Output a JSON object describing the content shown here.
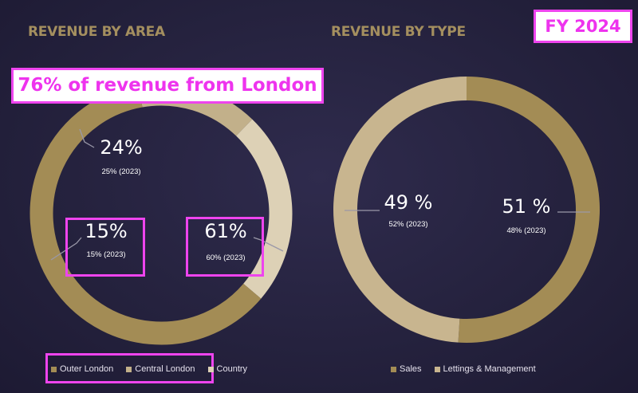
{
  "badge": "FY 2024",
  "headline": "76% of revenue from London",
  "chart_data": [
    {
      "type": "pie",
      "title": "REVENUE BY AREA",
      "categories": [
        "Central London",
        "Country",
        "Outer London"
      ],
      "values": [
        15,
        24,
        61
      ],
      "labels": [
        "15%",
        "24%",
        "61%"
      ],
      "sublabels": [
        "15% (2023)",
        "25% (2023)",
        "60% (2023)"
      ],
      "colors": [
        "#c2b08a",
        "#ddd1b6",
        "#a38c55"
      ],
      "legend": [
        {
          "name": "Outer London",
          "color": "#a38c55"
        },
        {
          "name": "Central London",
          "color": "#c2b08a"
        },
        {
          "name": "Country",
          "color": "#ddd1b6"
        }
      ],
      "legend_position": "bottom"
    },
    {
      "type": "pie",
      "title": "REVENUE BY TYPE",
      "categories": [
        "Sales",
        "Lettings & Management"
      ],
      "values": [
        51,
        49
      ],
      "labels": [
        "51 %",
        "49 %"
      ],
      "sublabels": [
        "48% (2023)",
        "52% (2023)"
      ],
      "colors": [
        "#a38c55",
        "#c8b58f"
      ],
      "legend": [
        {
          "name": "Sales",
          "color": "#a38c55"
        },
        {
          "name": "Lettings & Management",
          "color": "#c8b58f"
        }
      ],
      "legend_position": "bottom"
    }
  ]
}
